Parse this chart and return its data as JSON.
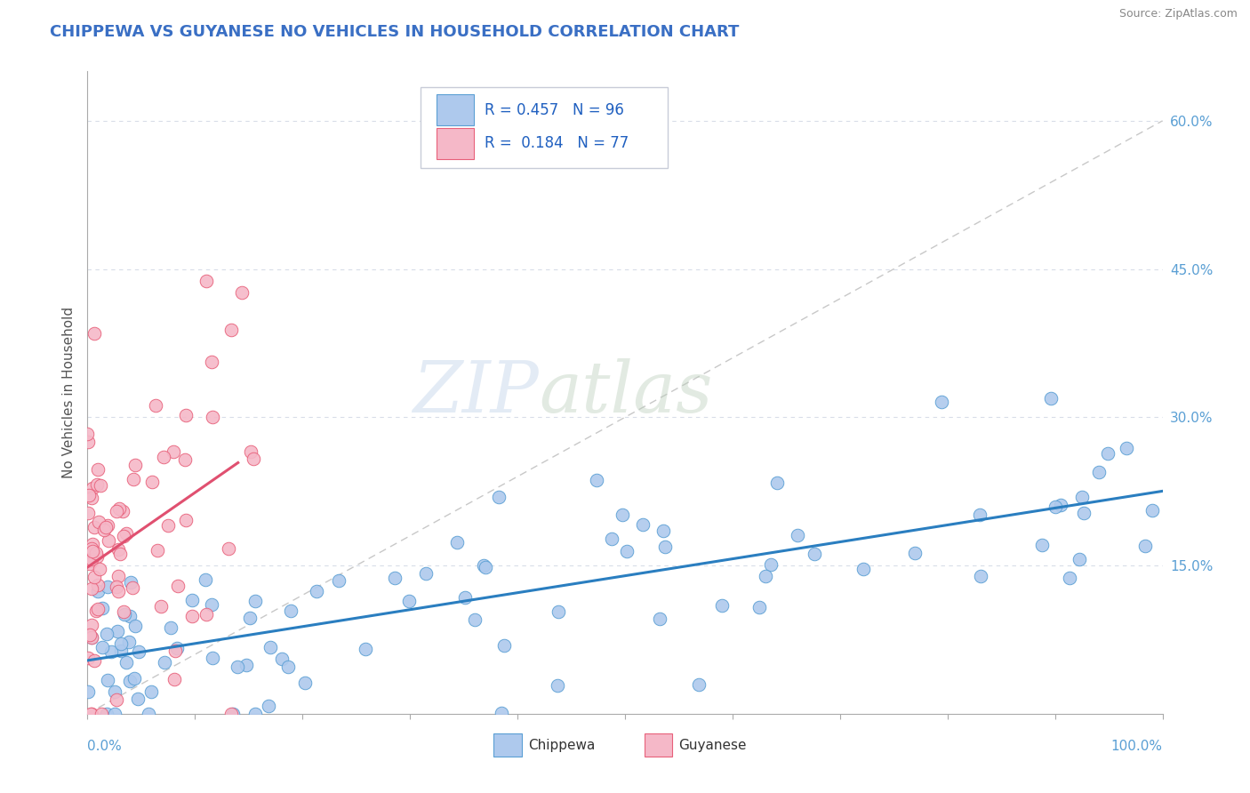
{
  "title": "CHIPPEWA VS GUYANESE NO VEHICLES IN HOUSEHOLD CORRELATION CHART",
  "source": "Source: ZipAtlas.com",
  "ylabel": "No Vehicles in Household",
  "xlim": [
    0,
    1
  ],
  "ylim": [
    0,
    0.65
  ],
  "watermark_zip": "ZIP",
  "watermark_atlas": "atlas",
  "legend_R1": "0.457",
  "legend_N1": "96",
  "legend_R2": "0.184",
  "legend_N2": "77",
  "chippewa_color": "#aec9ed",
  "guyanese_color": "#f5b8c8",
  "chippewa_edge_color": "#5a9fd4",
  "guyanese_edge_color": "#e8607a",
  "chippewa_line_color": "#2a7ec0",
  "guyanese_line_color": "#e05070",
  "diagonal_color": "#c8c8c8",
  "background_color": "#ffffff",
  "title_color": "#3a6fc4",
  "axis_label_color": "#5a9fd4",
  "ylabel_color": "#555555",
  "grid_color": "#d8dde8",
  "chip_intercept": 0.05,
  "chip_slope": 0.17,
  "guy_intercept": 0.12,
  "guy_slope": 1.5
}
